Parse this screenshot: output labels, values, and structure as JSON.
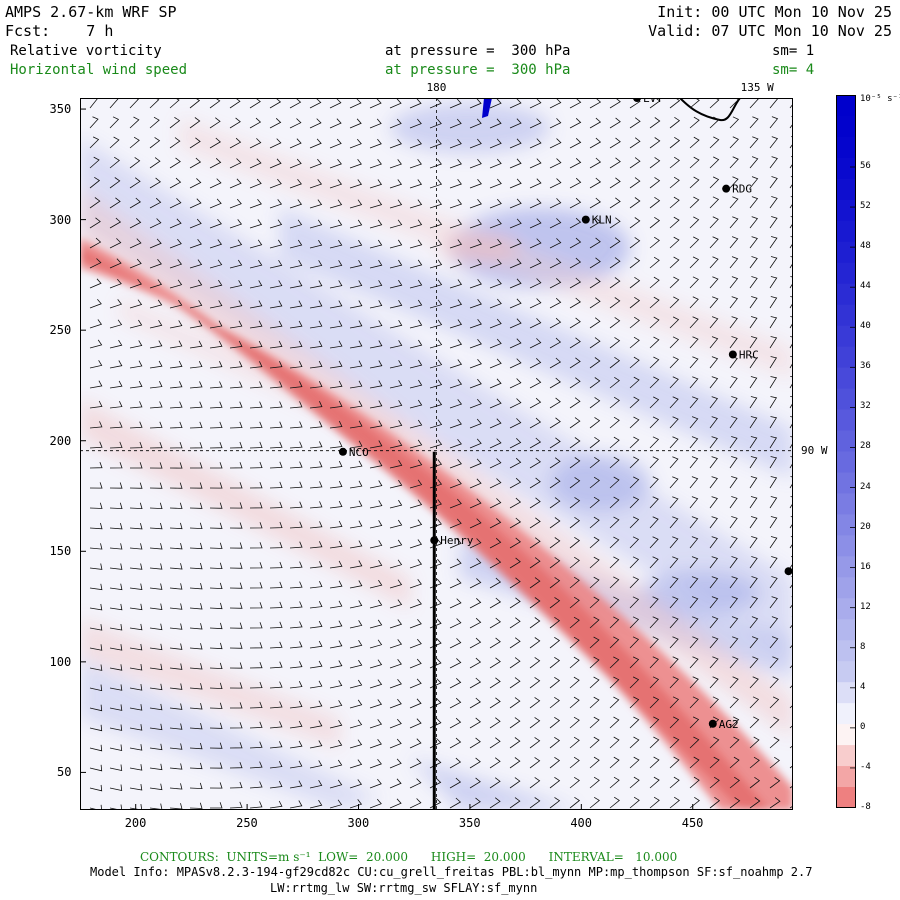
{
  "header": {
    "model_title": "AMPS 2.67-km WRF SP",
    "forecast": "Fcst:    7 h",
    "init": "Init: 00 UTC Mon 10 Nov 25",
    "valid": "Valid: 07 UTC Mon 10 Nov 25",
    "field1_name": "Relative vorticity",
    "field1_level": "at pressure =  300 hPa",
    "field1_smooth": "sm= 1",
    "field2_name": "Horizontal wind speed",
    "field2_level": "at pressure =  300 hPa",
    "field2_smooth": "sm= 4"
  },
  "map": {
    "x_ticks": [
      200,
      250,
      300,
      350,
      400,
      450
    ],
    "y_ticks": [
      50,
      100,
      150,
      200,
      250,
      300,
      350
    ],
    "x_range": [
      175,
      495
    ],
    "y_range": [
      33,
      355
    ],
    "longitude_labels": [
      {
        "text": "180",
        "x": 335
      },
      {
        "text": "135 W",
        "x": 476
      },
      {
        "text": "90 W",
        "y": 195.5
      }
    ],
    "stations": [
      {
        "name": "LVT",
        "x": 425,
        "y": 355
      },
      {
        "name": "RDG",
        "x": 465,
        "y": 314
      },
      {
        "name": "KLN",
        "x": 402,
        "y": 300
      },
      {
        "name": "HRC",
        "x": 468,
        "y": 239
      },
      {
        "name": "NCO",
        "x": 293,
        "y": 195
      },
      {
        "name": "Henry",
        "x": 334,
        "y": 155
      },
      {
        "name": "AG2",
        "x": 459,
        "y": 72
      },
      {
        "name": "",
        "x": 493,
        "y": 141
      }
    ],
    "cross_section": {
      "x": 334,
      "y_start": 33,
      "y_end": 195
    }
  },
  "colorbar": {
    "units": "10⁻⁵ s⁻¹",
    "labels": [
      "56",
      "52",
      "48",
      "44",
      "40",
      "36",
      "32",
      "28",
      "24",
      "20",
      "16",
      "12",
      "8",
      "4",
      "0",
      "-4",
      "-8"
    ],
    "colors": {
      "strong_positive": "#0000cc",
      "weak_positive": "#c8ccf2",
      "zero": "#ffffff",
      "negative": "#ee8080"
    }
  },
  "footer": {
    "contours": "CONTOURS:  UNITS=m s⁻¹  LOW=  20.000      HIGH=  20.000      INTERVAL=   10.000",
    "model_info_1": "Model Info: MPASv8.2.3-194-gf29cd82c CU:cu_grell_freitas PBL:bl_mynn MP:mp_thompson SF:sf_noahmp 2.7",
    "model_info_2": "LW:rrtmg_lw SW:rrtmg_sw SFLAY:sf_mynn"
  }
}
